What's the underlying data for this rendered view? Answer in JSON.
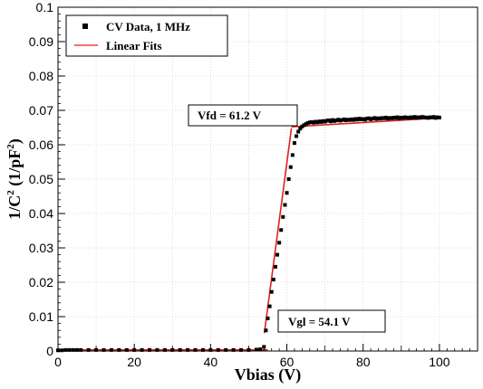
{
  "chart_data": {
    "type": "scatter",
    "xlabel": "Vbias (V)",
    "ylabel_main": "1/C",
    "ylabel_sup1": "2",
    "ylabel_mid": " (1/pF",
    "ylabel_sup2": "2",
    "ylabel_end": ")",
    "xlim": [
      0,
      110
    ],
    "ylim": [
      0,
      0.1
    ],
    "grid": true,
    "legend_position": "top-left",
    "x_ticks": [
      0,
      20,
      40,
      60,
      80,
      100
    ],
    "x_tick_labels": [
      "0",
      "20",
      "40",
      "60",
      "80",
      "100"
    ],
    "y_ticks": [
      0,
      0.01,
      0.02,
      0.03,
      0.04,
      0.05,
      0.06,
      0.07,
      0.08,
      0.09,
      0.1
    ],
    "y_tick_labels": [
      "0",
      "0.01",
      "0.02",
      "0.03",
      "0.04",
      "0.05",
      "0.06",
      "0.07",
      "0.08",
      "0.09",
      "0.1"
    ],
    "series": [
      {
        "name": "CV Data, 1 MHz",
        "color": "#000000",
        "marker": "square",
        "x": [
          0,
          1,
          2,
          3,
          4,
          5,
          6,
          8,
          10,
          12,
          14,
          16,
          18,
          20,
          22,
          24,
          26,
          28,
          30,
          32,
          34,
          36,
          38,
          40,
          42,
          44,
          46,
          48,
          50,
          52,
          53,
          54,
          54.5,
          55,
          55.5,
          56,
          56.5,
          57,
          57.5,
          58,
          58.5,
          59,
          59.5,
          60,
          60.5,
          61,
          61.5,
          62,
          62.5,
          63,
          63.5,
          64,
          64.5,
          65,
          65.5,
          66,
          66.5,
          67,
          67.5,
          68,
          68.5,
          69,
          69.5,
          70,
          70.5,
          71,
          71.5,
          72,
          72.5,
          73,
          73.5,
          74,
          74.5,
          75,
          75.5,
          76,
          76.5,
          77,
          77.5,
          78,
          78.5,
          79,
          79.5,
          80,
          80.5,
          81,
          81.5,
          82,
          82.5,
          83,
          83.5,
          84,
          84.5,
          85,
          85.5,
          86,
          86.5,
          87,
          87.5,
          88,
          88.5,
          89,
          89.5,
          90,
          90.5,
          91,
          91.5,
          92,
          92.5,
          93,
          93.5,
          94,
          94.5,
          95,
          95.5,
          96,
          96.5,
          97,
          97.5,
          98,
          98.5,
          99,
          99.5,
          100
        ],
        "y": [
          0.0002,
          0.0002,
          0.0003,
          0.0003,
          0.0003,
          0.0003,
          0.0003,
          0.0003,
          0.0003,
          0.0003,
          0.0003,
          0.0003,
          0.0003,
          0.0003,
          0.0003,
          0.0003,
          0.0003,
          0.0003,
          0.0003,
          0.0003,
          0.0003,
          0.0003,
          0.0003,
          0.0003,
          0.0003,
          0.0003,
          0.0003,
          0.0003,
          0.0003,
          0.0004,
          0.0005,
          0.0012,
          0.006,
          0.0095,
          0.013,
          0.0172,
          0.0208,
          0.0245,
          0.028,
          0.0315,
          0.0352,
          0.039,
          0.0425,
          0.046,
          0.05,
          0.0535,
          0.057,
          0.0605,
          0.0625,
          0.0638,
          0.0647,
          0.0653,
          0.0657,
          0.066,
          0.0663,
          0.0665,
          0.0666,
          0.0664,
          0.0667,
          0.0665,
          0.0668,
          0.0666,
          0.0669,
          0.0667,
          0.067,
          0.0671,
          0.0668,
          0.0672,
          0.0669,
          0.0671,
          0.0673,
          0.067,
          0.0672,
          0.0674,
          0.0671,
          0.0673,
          0.0672,
          0.0674,
          0.0672,
          0.0675,
          0.0673,
          0.0676,
          0.0674,
          0.0675,
          0.0673,
          0.0676,
          0.0677,
          0.0674,
          0.0676,
          0.0678,
          0.0675,
          0.0677,
          0.0676,
          0.0678,
          0.0677,
          0.0679,
          0.0676,
          0.0678,
          0.0677,
          0.0679,
          0.0678,
          0.068,
          0.0677,
          0.0679,
          0.0678,
          0.068,
          0.0679,
          0.0678,
          0.068,
          0.0679,
          0.0681,
          0.0678,
          0.068,
          0.0679,
          0.0681,
          0.068,
          0.0679,
          0.0678,
          0.068,
          0.0679,
          0.0681,
          0.0678,
          0.068,
          0.0679
        ]
      },
      {
        "name": "Linear Fits",
        "color": "#dd2222",
        "fits": [
          {
            "x": [
              0,
              55
            ],
            "y": [
              0.0003,
              0.0003
            ]
          },
          {
            "x": [
              54.1,
              61.2
            ],
            "y": [
              0.0052,
              0.0648
            ]
          },
          {
            "x": [
              61.2,
              100
            ],
            "y": [
              0.0652,
              0.0678
            ]
          }
        ]
      }
    ],
    "annotations": [
      {
        "id": "vfd",
        "text": "Vfd =  61.2 V",
        "x": 58.5,
        "y": 0.0694
      },
      {
        "id": "vgl",
        "text": "Vgl =  54.1 V",
        "x": 69.5,
        "y": 0.0076
      }
    ]
  }
}
